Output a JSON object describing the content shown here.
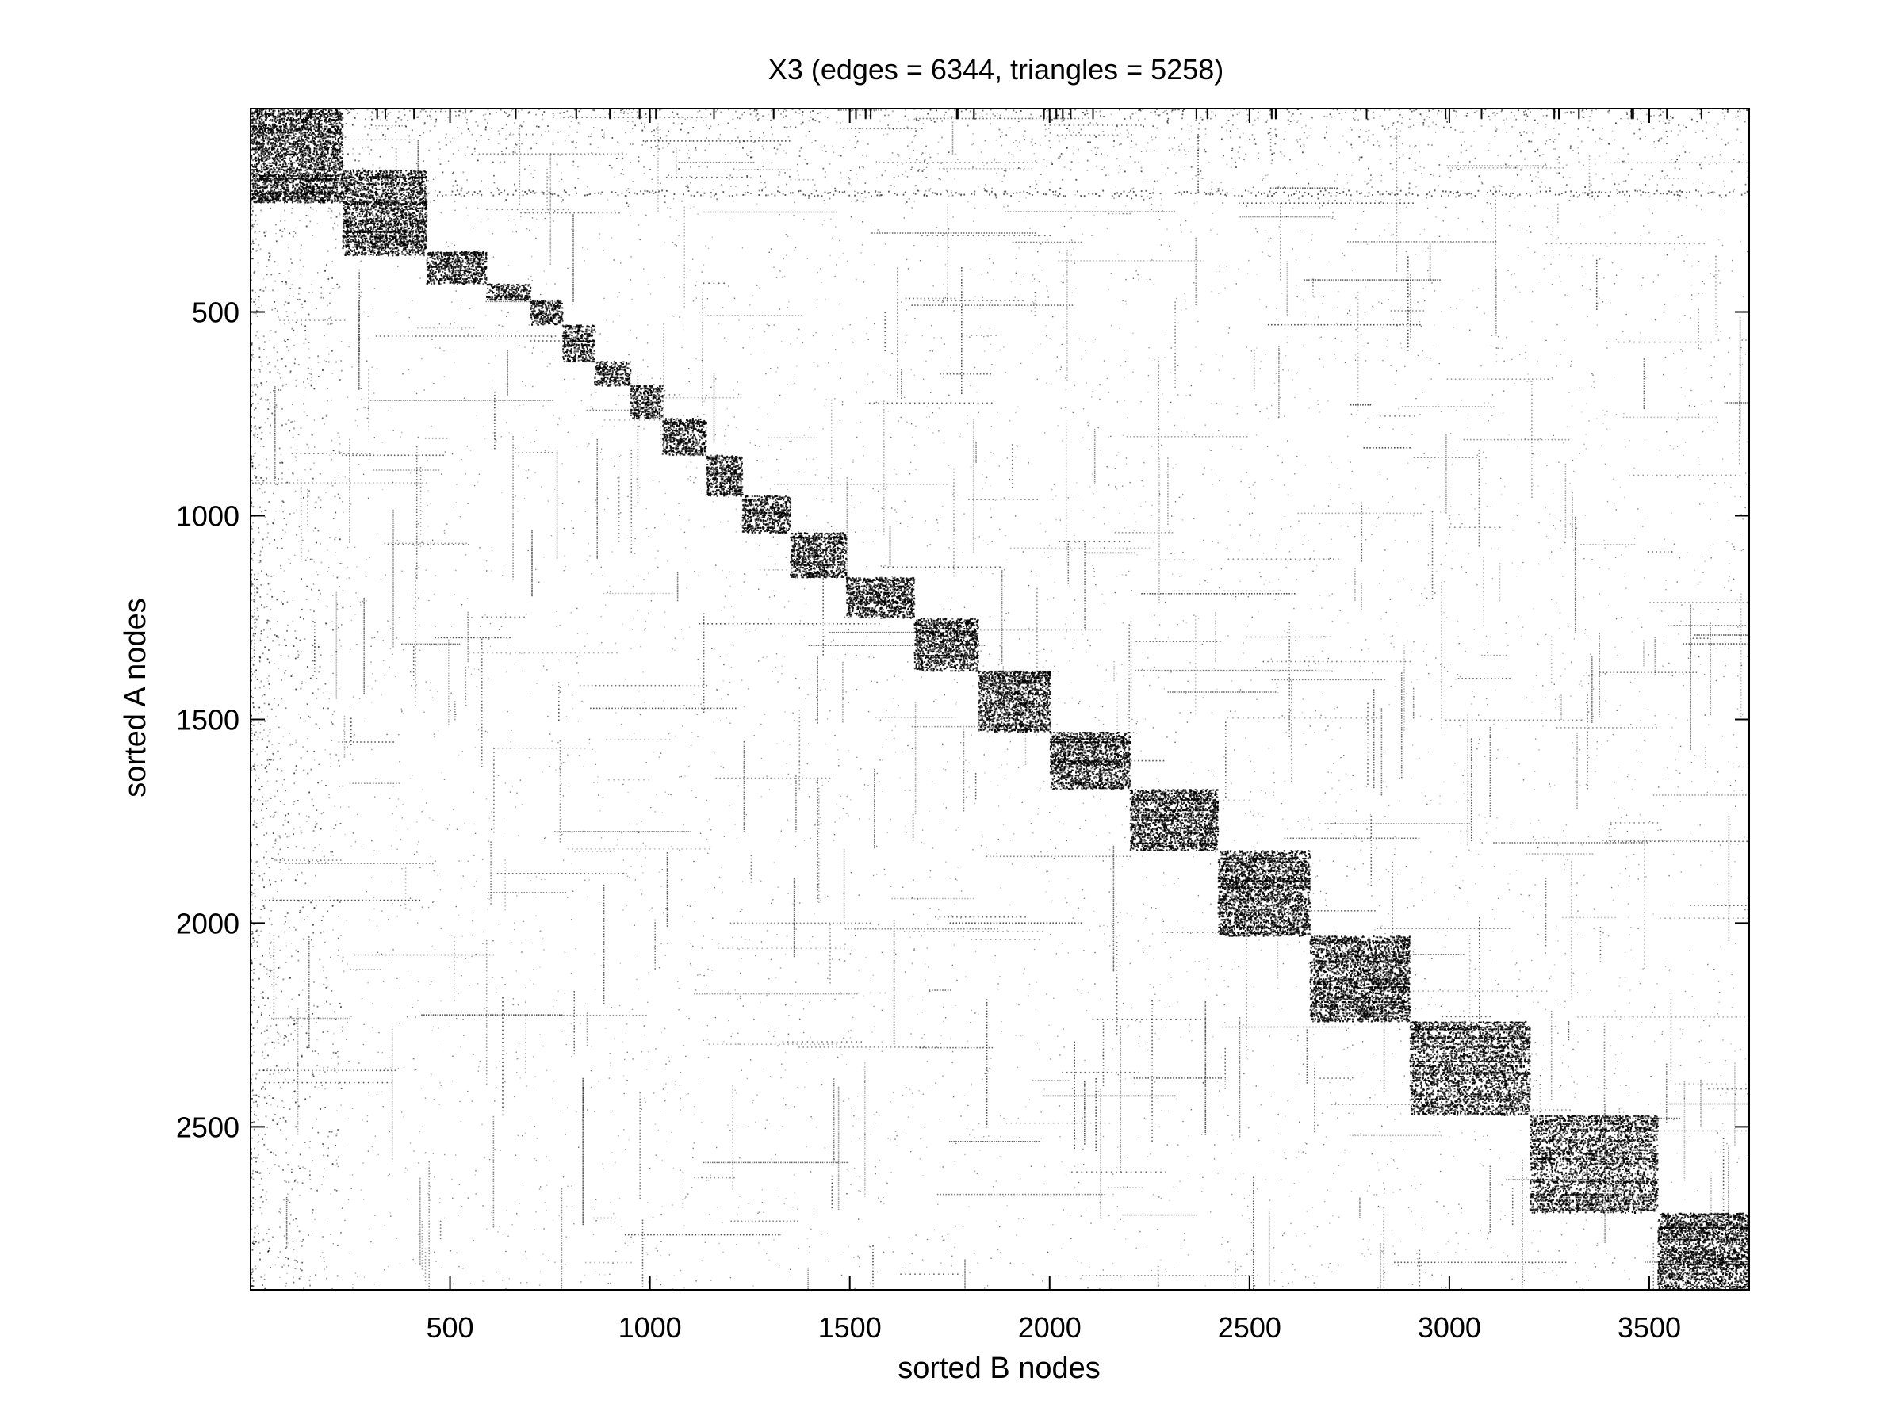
{
  "chart_data": {
    "type": "heatmap",
    "title": "X3 (edges = 6344, triangles = 5258)",
    "xlabel": "sorted B nodes",
    "ylabel": "sorted A nodes",
    "xlim": [
      1,
      3750
    ],
    "ylim": [
      1,
      2900
    ],
    "y_axis_direction": "top-to-bottom",
    "xticks": [
      500,
      1000,
      1500,
      2000,
      2500,
      3000,
      3500
    ],
    "yticks": [
      500,
      1000,
      1500,
      2000,
      2500
    ],
    "xtick_labels": [
      "500",
      "1000",
      "1500",
      "2000",
      "2500",
      "3000",
      "3500"
    ],
    "ytick_labels": [
      "500",
      "1000",
      "1500",
      "2000",
      "2500"
    ],
    "grid": false,
    "colormap": "gray: black = edge present, white = no edge",
    "edges": 6344,
    "triangles": 5258,
    "diagonal_blocks": [
      {
        "b": [
          1,
          230
        ],
        "a": [
          1,
          230
        ]
      },
      {
        "b": [
          230,
          440
        ],
        "a": [
          150,
          360
        ]
      },
      {
        "b": [
          440,
          590
        ],
        "a": [
          350,
          430
        ]
      },
      {
        "b": [
          590,
          700
        ],
        "a": [
          430,
          470
        ]
      },
      {
        "b": [
          700,
          780
        ],
        "a": [
          470,
          530
        ]
      },
      {
        "b": [
          780,
          860
        ],
        "a": [
          530,
          620
        ]
      },
      {
        "b": [
          860,
          950
        ],
        "a": [
          620,
          680
        ]
      },
      {
        "b": [
          950,
          1030
        ],
        "a": [
          680,
          760
        ]
      },
      {
        "b": [
          1030,
          1140
        ],
        "a": [
          760,
          850
        ]
      },
      {
        "b": [
          1140,
          1230
        ],
        "a": [
          850,
          950
        ]
      },
      {
        "b": [
          1230,
          1350
        ],
        "a": [
          950,
          1040
        ]
      },
      {
        "b": [
          1350,
          1490
        ],
        "a": [
          1040,
          1150
        ]
      },
      {
        "b": [
          1490,
          1660
        ],
        "a": [
          1150,
          1250
        ]
      },
      {
        "b": [
          1660,
          1820
        ],
        "a": [
          1250,
          1380
        ]
      },
      {
        "b": [
          1820,
          2000
        ],
        "a": [
          1380,
          1530
        ]
      },
      {
        "b": [
          2000,
          2200
        ],
        "a": [
          1530,
          1670
        ]
      },
      {
        "b": [
          2200,
          2420
        ],
        "a": [
          1670,
          1820
        ]
      },
      {
        "b": [
          2420,
          2650
        ],
        "a": [
          1820,
          2030
        ]
      },
      {
        "b": [
          2650,
          2900
        ],
        "a": [
          2030,
          2240
        ]
      },
      {
        "b": [
          2900,
          3200
        ],
        "a": [
          2240,
          2470
        ]
      },
      {
        "b": [
          3200,
          3520
        ],
        "a": [
          2470,
          2710
        ]
      },
      {
        "b": [
          3520,
          3750
        ],
        "a": [
          2710,
          2900
        ]
      }
    ]
  }
}
